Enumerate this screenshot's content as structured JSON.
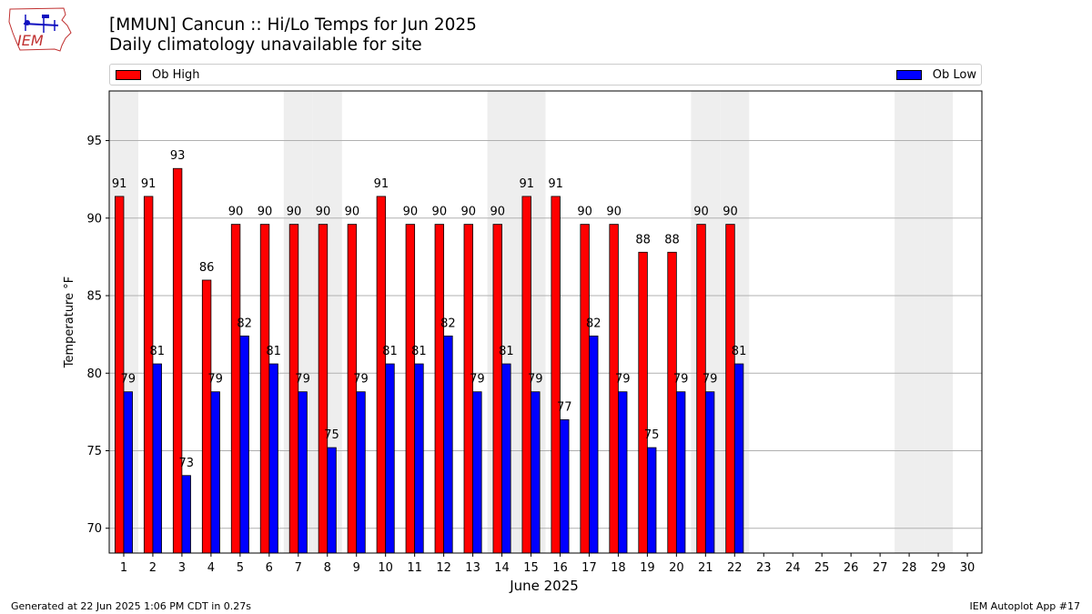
{
  "header": {
    "title_line1": "[MMUN] Cancun :: Hi/Lo Temps for Jun 2025",
    "title_line2": "Daily climatology unavailable for site",
    "logo_text": "IEM"
  },
  "legend": {
    "high_label": "Ob High",
    "low_label": "Ob Low",
    "placement": "top (above plot, spanning width)"
  },
  "footer": {
    "left": "Generated at 22 Jun 2025 1:06 PM CDT in 0.27s",
    "right": "IEM Autoplot App #17"
  },
  "colors": {
    "high": "#ff0000",
    "low": "#0000ff",
    "weekend_shade": "#eeeeee",
    "grid": "#b0b0b0"
  },
  "chart_data": {
    "type": "bar",
    "title": "[MMUN] Cancun :: Hi/Lo Temps for Jun 2025",
    "subtitle": "Daily climatology unavailable for site",
    "xlabel": "June 2025",
    "ylabel": "Temperature °F",
    "categories": [
      1,
      2,
      3,
      4,
      5,
      6,
      7,
      8,
      9,
      10,
      11,
      12,
      13,
      14,
      15,
      16,
      17,
      18,
      19,
      20,
      21,
      22,
      23,
      24,
      25,
      26,
      27,
      28,
      29,
      30
    ],
    "series": [
      {
        "name": "Ob High",
        "color": "#ff0000",
        "values": [
          91.4,
          91.4,
          93.2,
          86.0,
          89.6,
          89.6,
          89.6,
          89.6,
          89.6,
          91.4,
          89.6,
          89.6,
          89.6,
          89.6,
          91.4,
          91.4,
          89.6,
          89.6,
          87.8,
          87.8,
          89.6,
          89.6,
          null,
          null,
          null,
          null,
          null,
          null,
          null,
          null
        ]
      },
      {
        "name": "Ob Low",
        "color": "#0000ff",
        "values": [
          78.8,
          80.6,
          73.4,
          78.8,
          82.4,
          80.6,
          78.8,
          75.2,
          78.8,
          80.6,
          80.6,
          82.4,
          78.8,
          80.6,
          78.8,
          77.0,
          82.4,
          78.8,
          75.2,
          78.8,
          78.8,
          80.6,
          null,
          null,
          null,
          null,
          null,
          null,
          null,
          null
        ]
      }
    ],
    "data_labels": {
      "high": [
        "91",
        "91",
        "93",
        "86",
        "90",
        "90",
        "90",
        "90",
        "90",
        "91",
        "90",
        "90",
        "90",
        "90",
        "91",
        "91",
        "90",
        "90",
        "88",
        "88",
        "90",
        "90"
      ],
      "low": [
        "79",
        "81",
        "73",
        "79",
        "82",
        "81",
        "79",
        "75",
        "79",
        "81",
        "81",
        "82",
        "79",
        "81",
        "79",
        "77",
        "82",
        "79",
        "75",
        "79",
        "79",
        "81"
      ]
    },
    "shaded_days": [
      1,
      7,
      8,
      14,
      15,
      21,
      22,
      28,
      29
    ],
    "ylim": [
      68.4,
      98.2
    ],
    "yticks": [
      70,
      75,
      80,
      85,
      90,
      95
    ],
    "xlim": [
      0.5,
      30.5
    ],
    "grid": "horizontal",
    "legend_placement": "top"
  }
}
